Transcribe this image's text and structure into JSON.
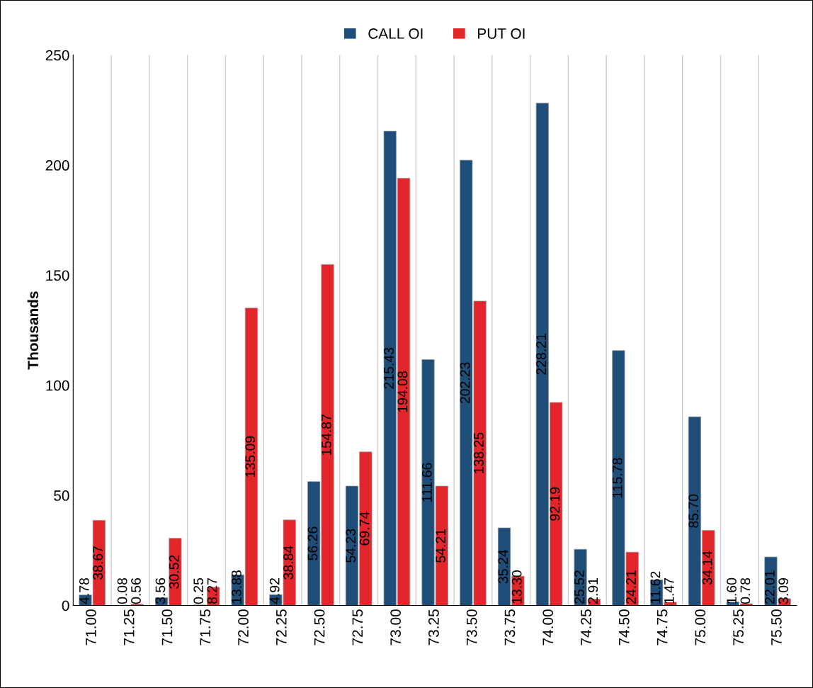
{
  "chart_data": {
    "type": "bar",
    "ylabel": "Thousands",
    "categories": [
      "71.00",
      "71.25",
      "71.50",
      "71.75",
      "72.00",
      "72.25",
      "72.50",
      "72.75",
      "73.00",
      "73.25",
      "73.50",
      "73.75",
      "74.00",
      "74.25",
      "74.50",
      "74.75",
      "75.00",
      "75.25",
      "75.50"
    ],
    "series": [
      {
        "name": "CALL OI",
        "color": "#1f4e79",
        "values": [
          4.78,
          0.08,
          3.56,
          0.25,
          13.88,
          4.92,
          56.26,
          54.23,
          215.43,
          111.66,
          202.23,
          35.24,
          228.21,
          25.52,
          115.78,
          11.62,
          85.7,
          1.6,
          22.01
        ],
        "value_labels": [
          "4.78",
          "0.08",
          "3.56",
          "0.25",
          "13.88",
          "4.92",
          "56.26",
          "54.23",
          "215.43",
          "111.66",
          "202.23",
          "35.24",
          "228.21",
          "25.52",
          "115.78",
          "11.62",
          "85.70",
          "1.60",
          "22.01"
        ]
      },
      {
        "name": "PUT OI",
        "color": "#e3262b",
        "values": [
          38.67,
          0.56,
          30.52,
          8.27,
          135.09,
          38.84,
          154.87,
          69.74,
          194.08,
          54.21,
          138.25,
          13.3,
          92.19,
          2.91,
          24.21,
          1.47,
          34.14,
          0.78,
          3.09
        ],
        "value_labels": [
          "38.67",
          "0.56",
          "30.52",
          "8.27",
          "135.09",
          "38.84",
          "154.87",
          "69.74",
          "194.08",
          "54.21",
          "138.25",
          "13.30",
          "92.19",
          "2.91",
          "24.21",
          "1.47",
          "34.14",
          "0.78",
          "3.09"
        ]
      }
    ],
    "ylim": [
      0,
      250
    ],
    "yticks": [
      0,
      50,
      100,
      150,
      200,
      250
    ],
    "grid": "x",
    "legend": "top"
  }
}
